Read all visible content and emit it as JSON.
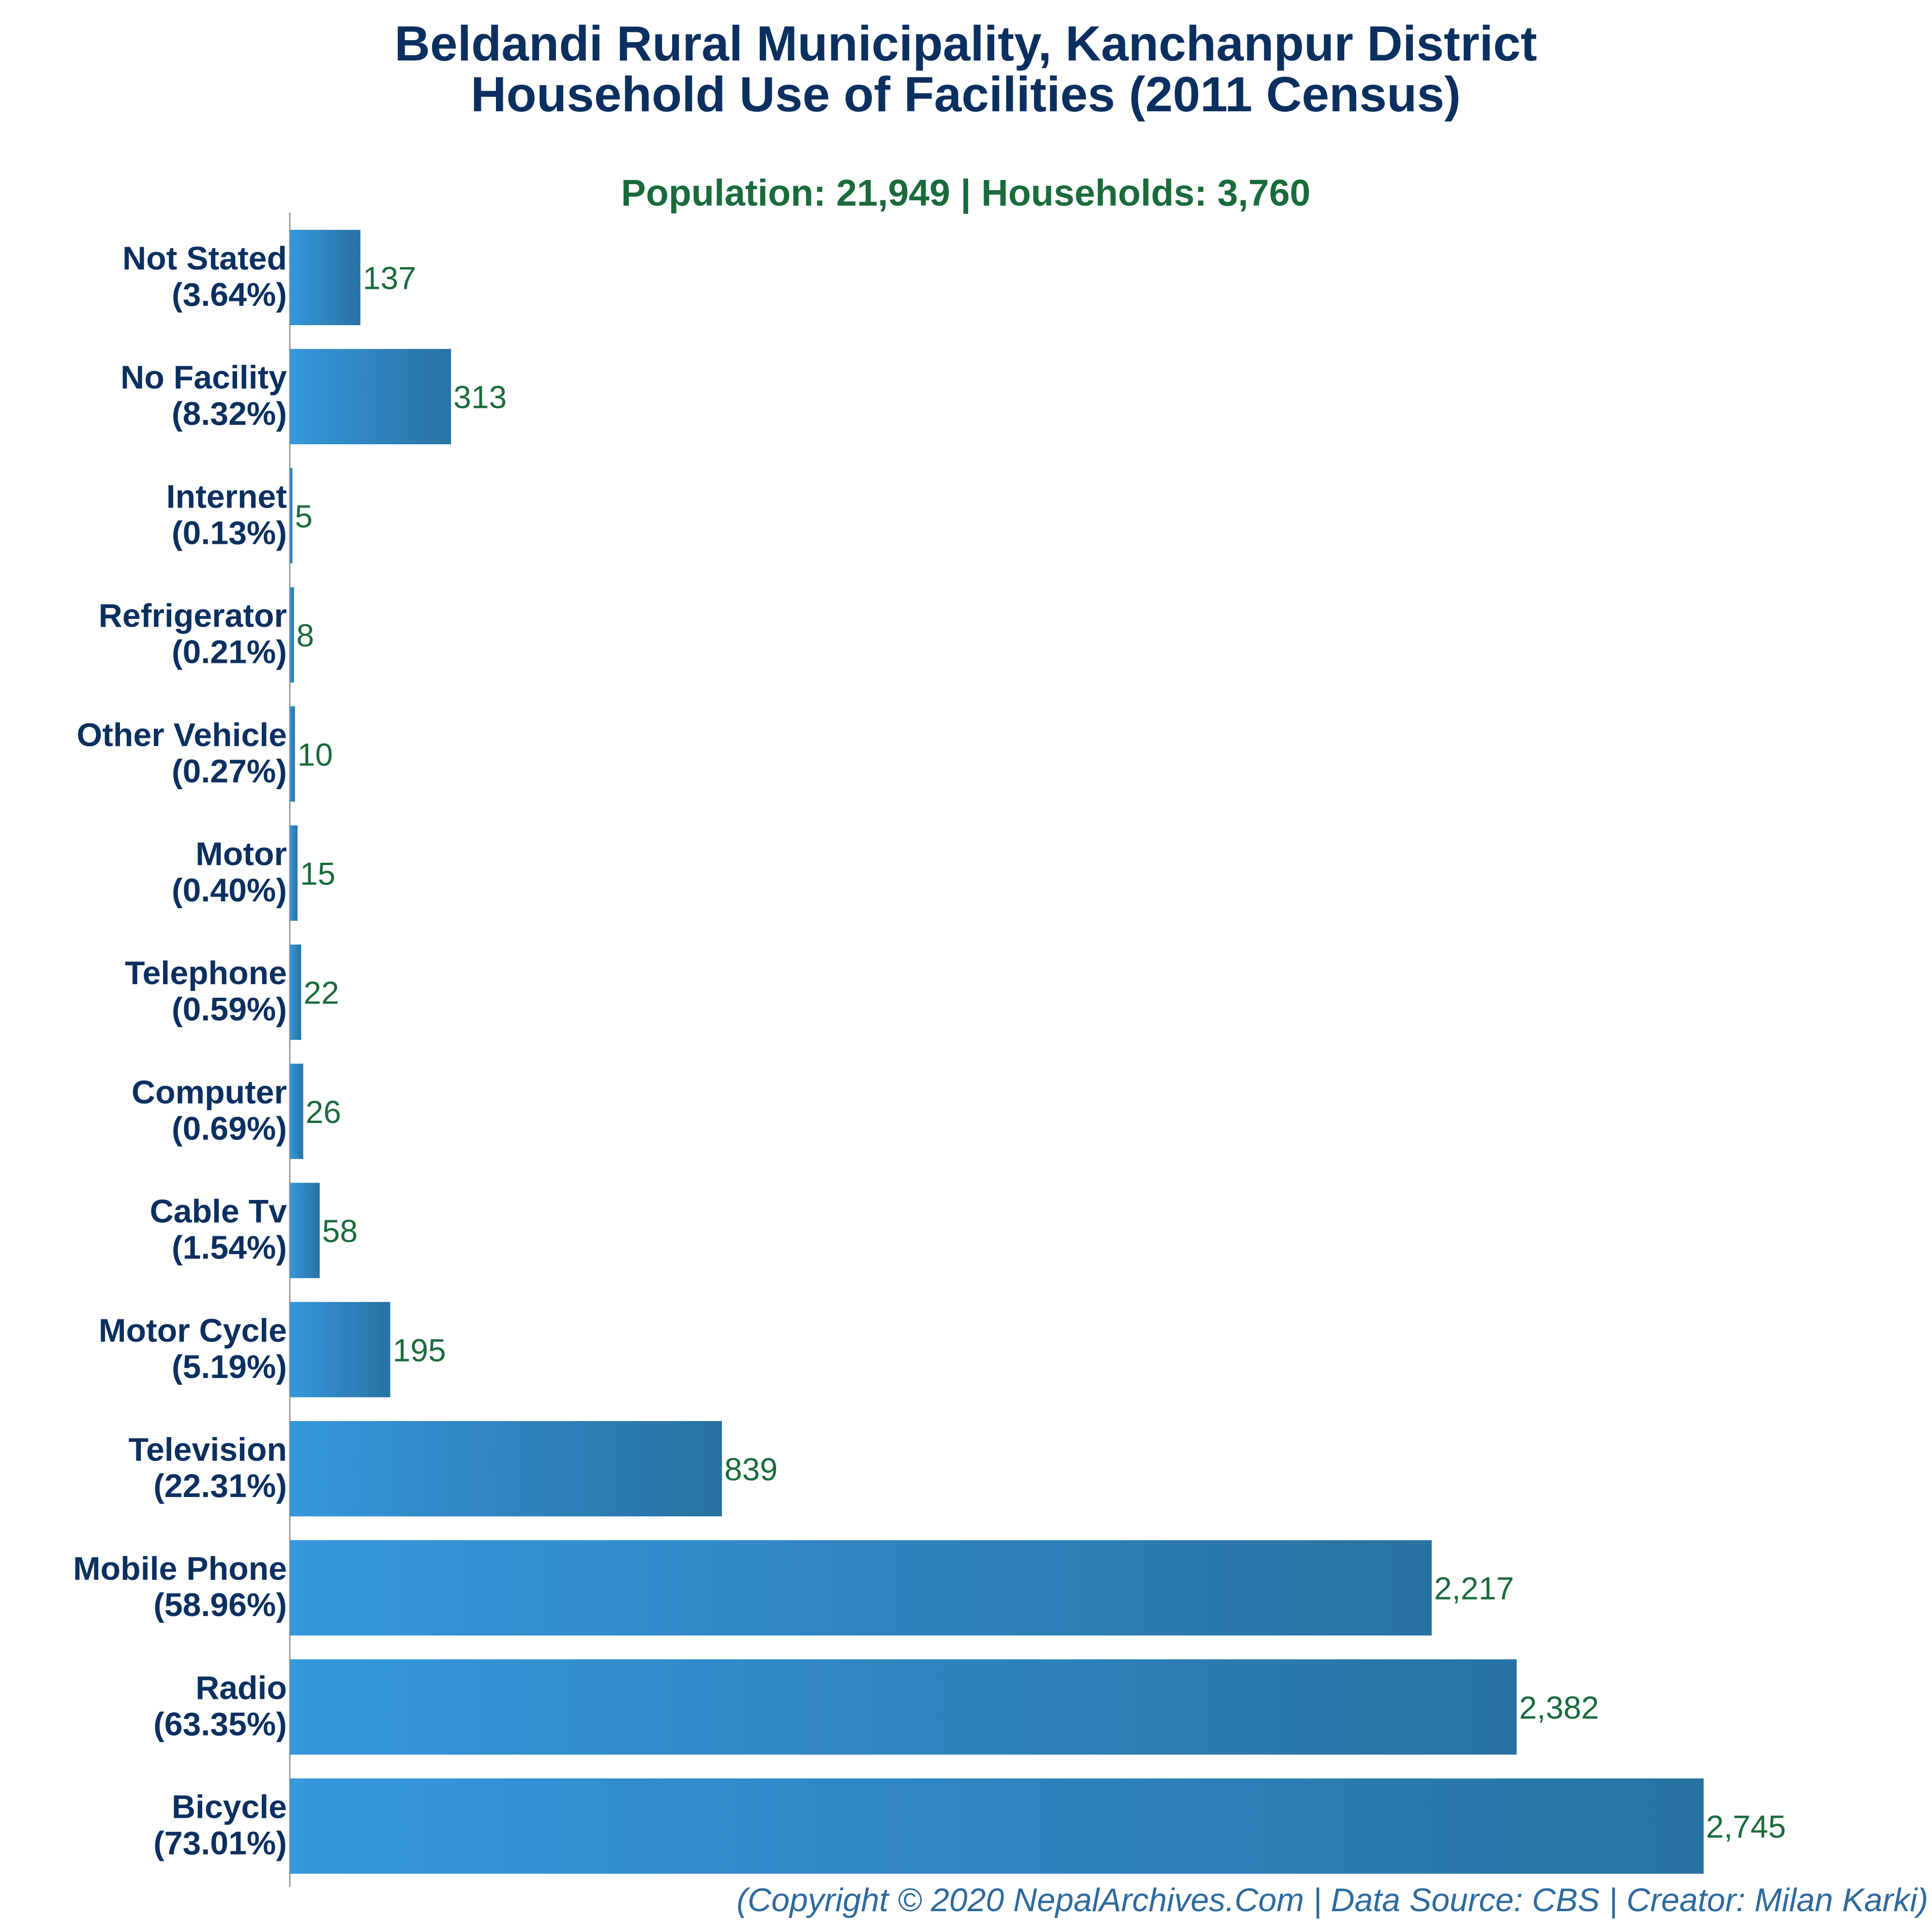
{
  "chart_data": {
    "type": "bar",
    "orientation": "horizontal",
    "title": "Beldandi Rural Municipality, Kanchanpur District",
    "title_line2": "Household Use of Facilities (2011 Census)",
    "subtitle": "Population: 21,949 | Households: 3,760",
    "categories": [
      {
        "name": "Not Stated",
        "pct": "(3.64%)",
        "value": 137,
        "value_label": "137"
      },
      {
        "name": "No Facility",
        "pct": "(8.32%)",
        "value": 313,
        "value_label": "313"
      },
      {
        "name": "Internet",
        "pct": "(0.13%)",
        "value": 5,
        "value_label": "5"
      },
      {
        "name": "Refrigerator",
        "pct": "(0.21%)",
        "value": 8,
        "value_label": "8"
      },
      {
        "name": "Other Vehicle",
        "pct": "(0.27%)",
        "value": 10,
        "value_label": "10"
      },
      {
        "name": "Motor",
        "pct": "(0.40%)",
        "value": 15,
        "value_label": "15"
      },
      {
        "name": "Telephone",
        "pct": "(0.59%)",
        "value": 22,
        "value_label": "22"
      },
      {
        "name": "Computer",
        "pct": "(0.69%)",
        "value": 26,
        "value_label": "26"
      },
      {
        "name": "Cable Tv",
        "pct": "(1.54%)",
        "value": 58,
        "value_label": "58"
      },
      {
        "name": "Motor Cycle",
        "pct": "(5.19%)",
        "value": 195,
        "value_label": "195"
      },
      {
        "name": "Television",
        "pct": "(22.31%)",
        "value": 839,
        "value_label": "839"
      },
      {
        "name": "Mobile Phone",
        "pct": "(58.96%)",
        "value": 2217,
        "value_label": "2,217"
      },
      {
        "name": "Radio",
        "pct": "(63.35%)",
        "value": 2382,
        "value_label": "2,382"
      },
      {
        "name": "Bicycle",
        "pct": "(73.01%)",
        "value": 2745,
        "value_label": "2,745"
      }
    ],
    "xlim": [
      0,
      2745
    ],
    "grid": false,
    "legend": "none",
    "colors": {
      "bar_light": "#3597dc",
      "bar_dark": "#2872a3",
      "title": "#0b3060",
      "subtitle": "#1a6b3c",
      "value_label": "#1a6b3c",
      "footer": "#2e6a9e"
    }
  },
  "footer": "(Copyright © 2020 NepalArchives.Com | Data Source: CBS | Creator: Milan Karki)"
}
